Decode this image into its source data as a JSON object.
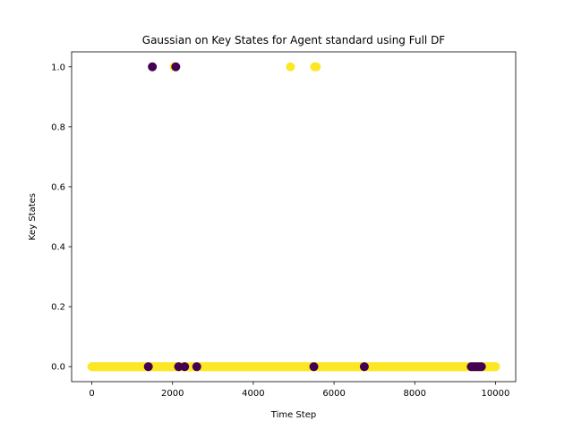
{
  "chart_data": {
    "type": "scatter",
    "title": "Gaussian on Key States for Agent standard using Full DF",
    "xlabel": "Time Step",
    "ylabel": "Key States",
    "xlim": [
      -500,
      10500
    ],
    "ylim": [
      -0.05,
      1.05
    ],
    "xticks": [
      0,
      2000,
      4000,
      6000,
      8000,
      10000
    ],
    "yticks": [
      0.0,
      0.2,
      0.4,
      0.6,
      0.8,
      1.0
    ],
    "xtick_labels": [
      "0",
      "2000",
      "4000",
      "6000",
      "8000",
      "10000"
    ],
    "ytick_labels": [
      "0.0",
      "0.2",
      "0.4",
      "0.6",
      "0.8",
      "1.0"
    ],
    "grid": false,
    "legend": "none",
    "colors": {
      "class_0": "#440154",
      "class_1": "#fde725"
    },
    "baseline": {
      "y": 0,
      "x_start": 0,
      "x_end": 10000,
      "step": 20,
      "class": 1
    },
    "points": [
      {
        "x": 1500,
        "y": 1,
        "class": 0
      },
      {
        "x": 2080,
        "y": 1,
        "class": 0
      },
      {
        "x": 2040,
        "y": 1,
        "class": 1
      },
      {
        "x": 4920,
        "y": 1,
        "class": 1
      },
      {
        "x": 5520,
        "y": 1,
        "class": 1
      },
      {
        "x": 5560,
        "y": 1,
        "class": 1
      },
      {
        "x": 1400,
        "y": 0,
        "class": 0
      },
      {
        "x": 2150,
        "y": 0,
        "class": 0
      },
      {
        "x": 2300,
        "y": 0,
        "class": 0
      },
      {
        "x": 2600,
        "y": 0,
        "class": 0
      },
      {
        "x": 5500,
        "y": 0,
        "class": 0
      },
      {
        "x": 6750,
        "y": 0,
        "class": 0
      },
      {
        "x": 9400,
        "y": 0,
        "class": 0
      },
      {
        "x": 9450,
        "y": 0,
        "class": 0
      },
      {
        "x": 9500,
        "y": 0,
        "class": 0
      },
      {
        "x": 9550,
        "y": 0,
        "class": 0
      },
      {
        "x": 9600,
        "y": 0,
        "class": 0
      },
      {
        "x": 9650,
        "y": 0,
        "class": 0
      }
    ]
  }
}
